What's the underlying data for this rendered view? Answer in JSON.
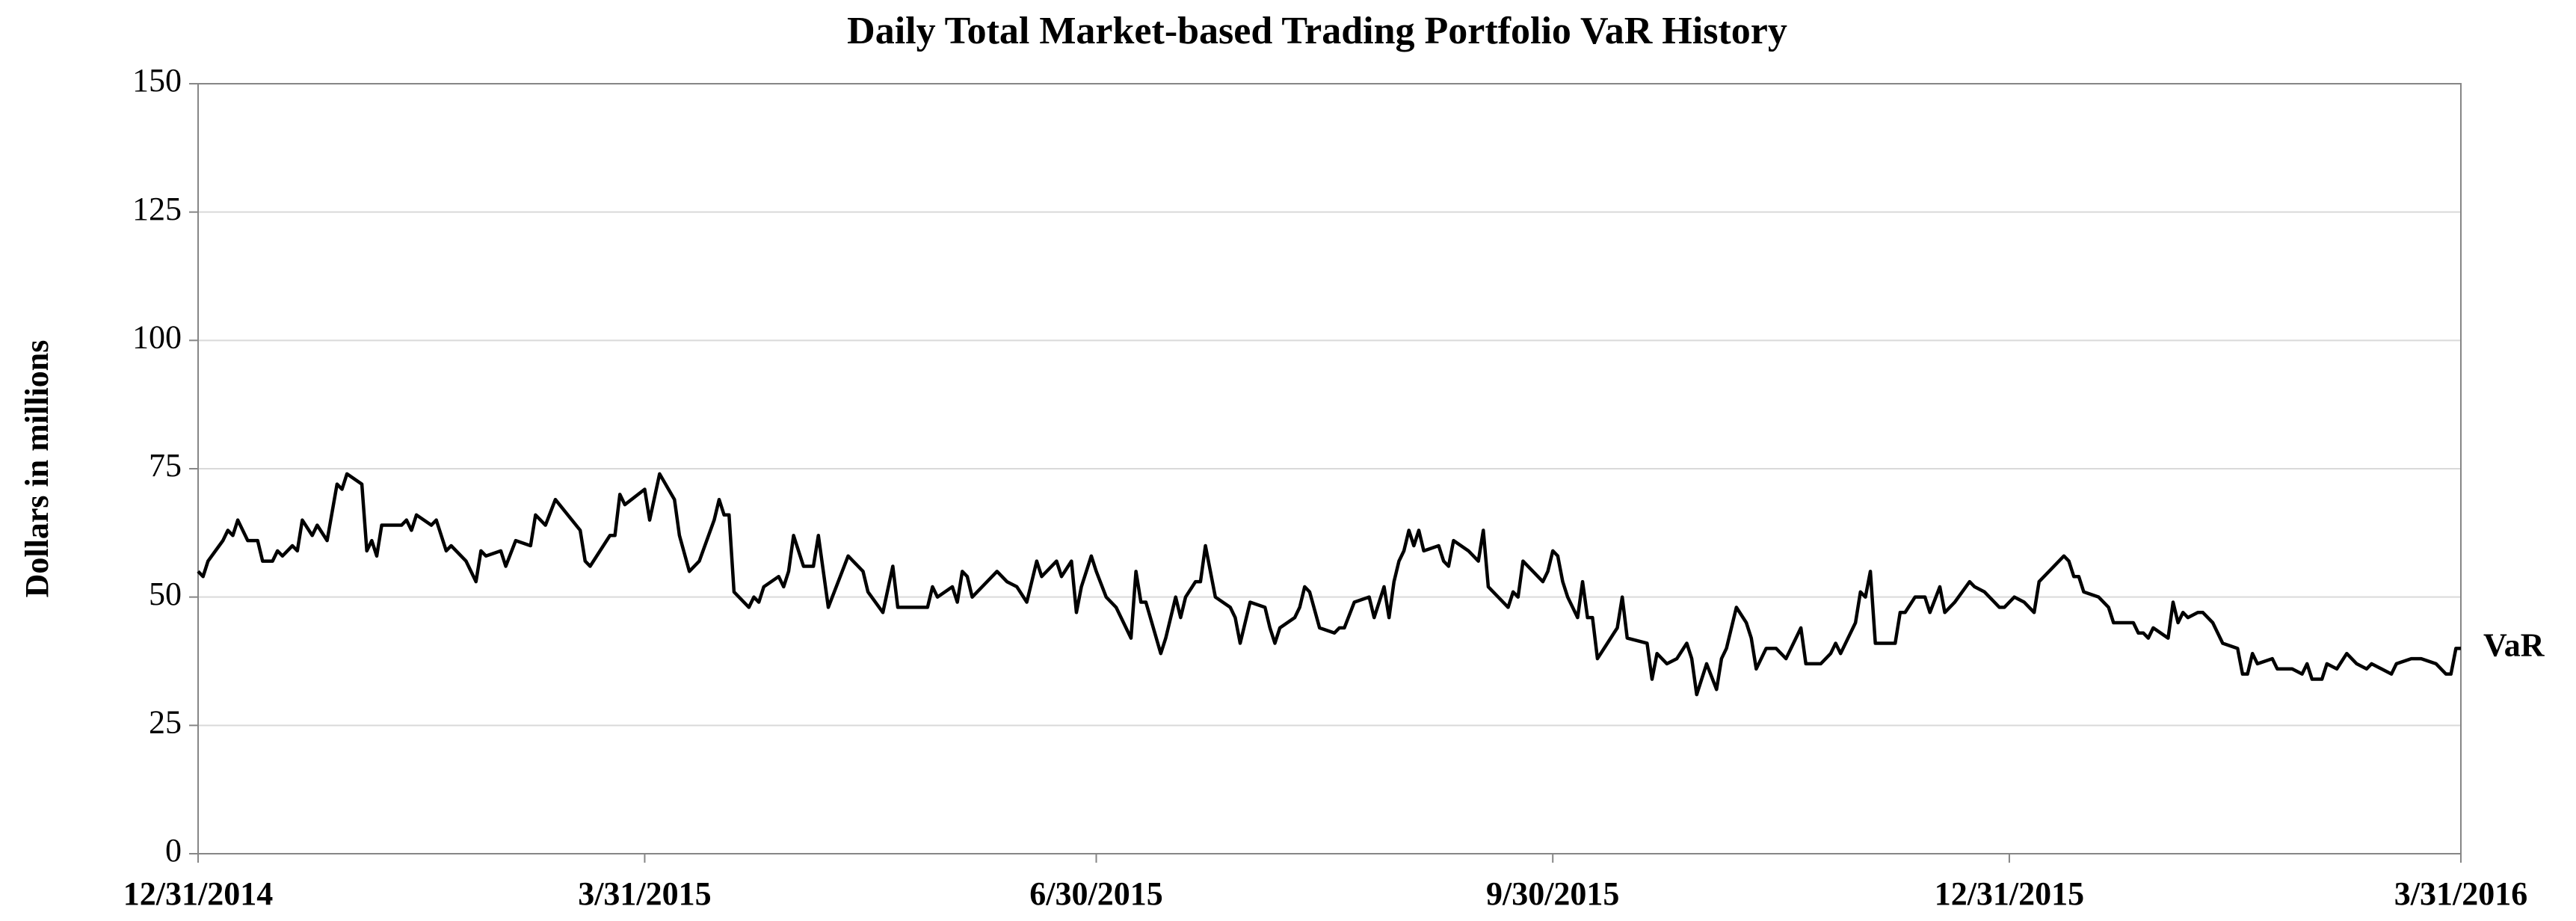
{
  "chart_data": {
    "type": "line",
    "title": "Daily Total Market-based Trading Portfolio VaR History",
    "y_label": "Dollars in millions",
    "xlim": [
      "12/31/2014",
      "3/31/2016"
    ],
    "xticks": [
      "12/31/2014",
      "3/31/2015",
      "6/30/2015",
      "9/30/2015",
      "12/31/2015",
      "3/31/2016"
    ],
    "ylim": [
      0,
      150
    ],
    "yticks": [
      0,
      25,
      50,
      75,
      100,
      125,
      150
    ],
    "grid": true,
    "x": [
      "12/31/2014",
      "1/1/2015",
      "1/2/2015",
      "1/5/2015",
      "1/6/2015",
      "1/7/2015",
      "1/8/2015",
      "1/10/2015",
      "1/12/2015",
      "1/13/2015",
      "1/15/2015",
      "1/16/2015",
      "1/17/2015",
      "1/19/2015",
      "1/20/2015",
      "1/21/2015",
      "1/23/2015",
      "1/24/2015",
      "1/26/2015",
      "1/28/2015",
      "1/29/2015",
      "1/30/2015",
      "2/2/2015",
      "2/3/2015",
      "2/4/2015",
      "2/5/2015",
      "2/6/2015",
      "2/10/2015",
      "2/11/2015",
      "2/12/2015",
      "2/13/2015",
      "2/16/2015",
      "2/17/2015",
      "2/19/2015",
      "2/20/2015",
      "2/23/2015",
      "2/25/2015",
      "2/26/2015",
      "2/27/2015",
      "3/2/2015",
      "3/3/2015",
      "3/5/2015",
      "3/8/2015",
      "3/9/2015",
      "3/11/2015",
      "3/13/2015",
      "3/18/2015",
      "3/19/2015",
      "3/20/2015",
      "3/24/2015",
      "3/25/2015",
      "3/26/2015",
      "3/27/2015",
      "3/31/2015",
      "4/1/2015",
      "4/3/2015",
      "4/6/2015",
      "4/7/2015",
      "4/9/2015",
      "4/11/2015",
      "4/14/2015",
      "4/15/2015",
      "4/16/2015",
      "4/17/2015",
      "4/18/2015",
      "4/21/2015",
      "4/22/2015",
      "4/23/2015",
      "4/24/2015",
      "4/27/2015",
      "4/28/2015",
      "4/29/2015",
      "4/30/2015",
      "5/2/2015",
      "5/4/2015",
      "5/5/2015",
      "5/7/2015",
      "5/11/2015",
      "5/13/2015",
      "5/14/2015",
      "5/15/2015",
      "5/18/2015",
      "5/20/2015",
      "5/21/2015",
      "5/27/2015",
      "5/28/2015",
      "5/29/2015",
      "6/1/2015",
      "6/2/2015",
      "6/3/2015",
      "6/4/2015",
      "6/5/2015",
      "6/7/2015",
      "6/10/2015",
      "6/11/2015",
      "6/12/2015",
      "6/14/2015",
      "6/16/2015",
      "6/18/2015",
      "6/19/2015",
      "6/22/2015",
      "6/23/2015",
      "6/25/2015",
      "6/26/2015",
      "6/27/2015",
      "6/29/2015",
      "6/30/2015",
      "7/2/2015",
      "7/4/2015",
      "7/7/2015",
      "7/8/2015",
      "7/9/2015",
      "7/10/2015",
      "7/13/2015",
      "7/14/2015",
      "7/16/2015",
      "7/17/2015",
      "7/18/2015",
      "7/20/2015",
      "7/21/2015",
      "7/22/2015",
      "7/24/2015",
      "7/27/2015",
      "7/28/2015",
      "7/29/2015",
      "7/31/2015",
      "8/3/2015",
      "8/4/2015",
      "8/5/2015",
      "8/6/2015",
      "8/9/2015",
      "8/10/2015",
      "8/11/2015",
      "8/12/2015",
      "8/14/2015",
      "8/17/2015",
      "8/18/2015",
      "8/19/2015",
      "8/21/2015",
      "8/24/2015",
      "8/25/2015",
      "8/27/2015",
      "8/28/2015",
      "8/29/2015",
      "8/30/2015",
      "8/31/2015",
      "9/1/2015",
      "9/2/2015",
      "9/3/2015",
      "9/4/2015",
      "9/7/2015",
      "9/8/2015",
      "9/9/2015",
      "9/10/2015",
      "9/13/2015",
      "9/15/2015",
      "9/16/2015",
      "9/17/2015",
      "9/21/2015",
      "9/22/2015",
      "9/23/2015",
      "9/24/2015",
      "9/26/2015",
      "9/28/2015",
      "9/29/2015",
      "9/30/2015",
      "10/1/2015",
      "10/2/2015",
      "10/3/2015",
      "10/5/2015",
      "10/6/2015",
      "10/7/2015",
      "10/8/2015",
      "10/9/2015",
      "10/11/2015",
      "10/13/2015",
      "10/14/2015",
      "10/15/2015",
      "10/19/2015",
      "10/20/2015",
      "10/21/2015",
      "10/23/2015",
      "10/25/2015",
      "10/27/2015",
      "10/28/2015",
      "10/29/2015",
      "10/31/2015",
      "11/2/2015",
      "11/3/2015",
      "11/4/2015",
      "11/6/2015",
      "11/8/2015",
      "11/9/2015",
      "11/10/2015",
      "11/12/2015",
      "11/14/2015",
      "11/16/2015",
      "11/19/2015",
      "11/20/2015",
      "11/23/2015",
      "11/25/2015",
      "11/26/2015",
      "11/27/2015",
      "11/30/2015",
      "12/1/2015",
      "12/2/2015",
      "12/3/2015",
      "12/4/2015",
      "12/8/2015",
      "12/9/2015",
      "12/10/2015",
      "12/12/2015",
      "12/14/2015",
      "12/15/2015",
      "12/17/2015",
      "12/18/2015",
      "12/20/2015",
      "12/23/2015",
      "12/24/2015",
      "12/26/2015",
      "12/27/2015",
      "12/29/2015",
      "12/30/2015",
      "12/31/2015",
      "1/1/2016",
      "1/3/2016",
      "1/5/2016",
      "1/6/2016",
      "1/10/2016",
      "1/11/2016",
      "1/12/2016",
      "1/13/2016",
      "1/14/2016",
      "1/15/2016",
      "1/18/2016",
      "1/20/2016",
      "1/21/2016",
      "1/25/2016",
      "1/26/2016",
      "1/27/2016",
      "1/28/2016",
      "1/29/2016",
      "2/1/2016",
      "2/2/2016",
      "2/3/2016",
      "2/4/2016",
      "2/5/2016",
      "2/7/2016",
      "2/8/2016",
      "2/10/2016",
      "2/12/2016",
      "2/15/2016",
      "2/16/2016",
      "2/17/2016",
      "2/18/2016",
      "2/19/2016",
      "2/22/2016",
      "2/23/2016",
      "2/26/2016",
      "2/28/2016",
      "2/29/2016",
      "3/1/2016",
      "3/3/2016",
      "3/4/2016",
      "3/6/2016",
      "3/8/2016",
      "3/10/2016",
      "3/12/2016",
      "3/13/2016",
      "3/15/2016",
      "3/17/2016",
      "3/18/2016",
      "3/21/2016",
      "3/23/2016",
      "3/26/2016",
      "3/28/2016",
      "3/29/2016",
      "3/30/2016",
      "3/31/2016"
    ],
    "series": [
      {
        "name": "VaR",
        "color": "#000000",
        "values": [
          55,
          54,
          57,
          61,
          63,
          62,
          65,
          61,
          61,
          57,
          57,
          59,
          58,
          60,
          59,
          65,
          62,
          64,
          61,
          72,
          71,
          74,
          72,
          59,
          61,
          58,
          64,
          64,
          65,
          63,
          66,
          64,
          65,
          59,
          60,
          57,
          53,
          59,
          58,
          59,
          56,
          61,
          60,
          66,
          64,
          69,
          63,
          57,
          56,
          62,
          62,
          70,
          68,
          71,
          65,
          74,
          69,
          62,
          55,
          57,
          65,
          69,
          66,
          66,
          51,
          48,
          50,
          49,
          52,
          54,
          52,
          55,
          62,
          56,
          56,
          62,
          48,
          58,
          56,
          55,
          51,
          47,
          56,
          48,
          48,
          52,
          50,
          52,
          49,
          55,
          54,
          50,
          52,
          55,
          54,
          53,
          52,
          49,
          57,
          54,
          57,
          54,
          57,
          47,
          52,
          58,
          55,
          50,
          48,
          42,
          55,
          49,
          49,
          39,
          42,
          50,
          46,
          50,
          53,
          53,
          60,
          50,
          48,
          46,
          41,
          49,
          48,
          44,
          41,
          44,
          46,
          48,
          52,
          51,
          44,
          43,
          44,
          44,
          49,
          50,
          46,
          52,
          46,
          53,
          57,
          59,
          63,
          60,
          63,
          59,
          60,
          57,
          56,
          61,
          59,
          57,
          63,
          52,
          48,
          51,
          50,
          57,
          55,
          53,
          55,
          59,
          58,
          53,
          50,
          46,
          53,
          46,
          46,
          38,
          41,
          44,
          50,
          42,
          41,
          34,
          39,
          37,
          38,
          41,
          38,
          31,
          37,
          32,
          38,
          40,
          48,
          45,
          42,
          36,
          40,
          40,
          38,
          44,
          37,
          37,
          39,
          41,
          39,
          45,
          51,
          50,
          55,
          41,
          41,
          47,
          47,
          50,
          50,
          47,
          52,
          47,
          49,
          53,
          52,
          51,
          50,
          48,
          48,
          49,
          50,
          49,
          47,
          53,
          57,
          58,
          57,
          54,
          54,
          51,
          50,
          48,
          45,
          45,
          43,
          43,
          42,
          44,
          42,
          49,
          45,
          47,
          46,
          47,
          47,
          45,
          41,
          40,
          35,
          35,
          39,
          37,
          38,
          36,
          36,
          35,
          37,
          34,
          34,
          37,
          36,
          39,
          37,
          36,
          37,
          36,
          35,
          37,
          38,
          38,
          37,
          35,
          35,
          40,
          40
        ]
      }
    ]
  }
}
